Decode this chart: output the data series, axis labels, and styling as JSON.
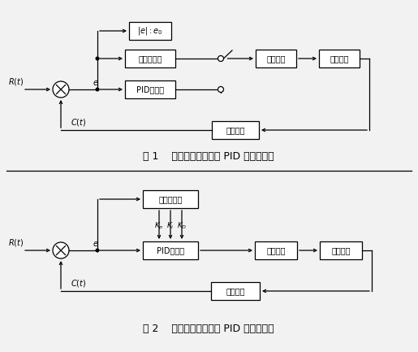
{
  "fig_width": 5.15,
  "fig_height": 4.33,
  "dpi": 100,
  "bg_color": "#f2f2f2",
  "caption1": "图 1    调整控制参数值的 PID 控制模型图",
  "caption2": "图 2    模糊增益自适应的 PID 控制模型图",
  "d1_abs_label": "$|e|:e_0$",
  "d1_fuzzy_label": "模糊控制器",
  "d1_pid_label": "PID控制器",
  "d1_exec_label": "执行机构",
  "d1_plant_label": "被控对象",
  "d1_meas_label": "测量装置",
  "d2_fuzzy_label": "模糊控制器",
  "d2_pid_label": "PID控制器",
  "d2_exec_label": "执行机构",
  "d2_plant_label": "被控对象",
  "d2_meas_label": "测量装置",
  "Rt_label": "$R(t)$",
  "Ct_label": "$C(t)$",
  "e_label": "$e$",
  "kp_label": "$K_p$",
  "ki_label": "$K_i$",
  "kd_label": "$K_D$"
}
